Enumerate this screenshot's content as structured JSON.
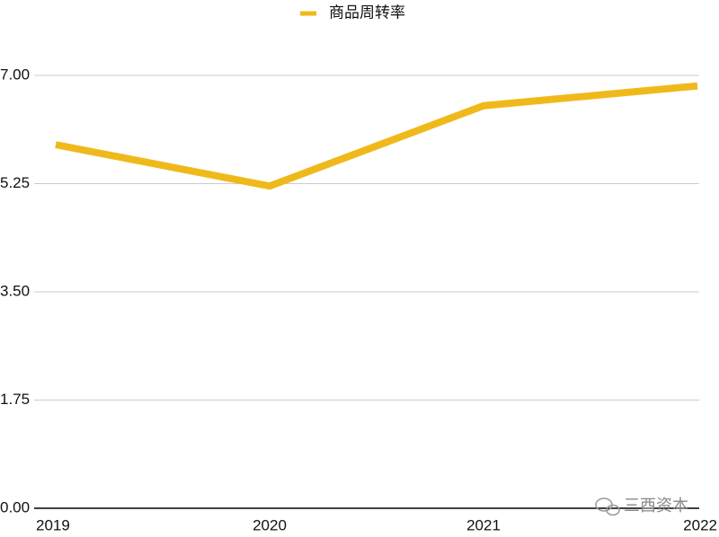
{
  "chart_data": {
    "type": "line",
    "categories": [
      "2019",
      "2020",
      "2021",
      "2022"
    ],
    "series": [
      {
        "name": "商品周转率",
        "color": "#f0b91b",
        "values": [
          5.88,
          5.21,
          6.51,
          6.83
        ]
      }
    ],
    "ylim": [
      0,
      7
    ],
    "yticks": [
      {
        "value": 0,
        "label": "0.00"
      },
      {
        "value": 1.75,
        "label": "1.75"
      },
      {
        "value": 3.5,
        "label": "3.50"
      },
      {
        "value": 5.25,
        "label": "5.25"
      },
      {
        "value": 7,
        "label": "7.00"
      }
    ],
    "grid": true,
    "legend": "top",
    "watermark": "三酉资本"
  }
}
